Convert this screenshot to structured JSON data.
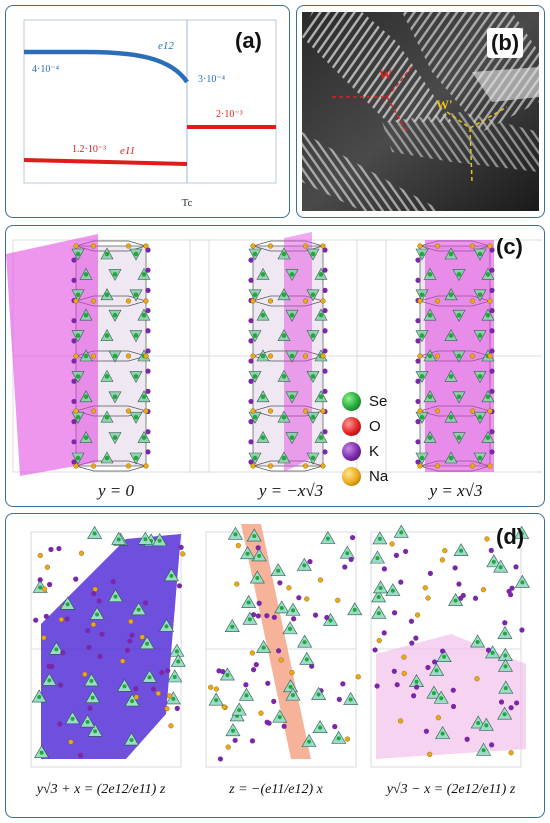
{
  "panel_a": {
    "label": "(a)",
    "curve_e12": {
      "label": "e12",
      "value_left": "4·10⁻⁴",
      "value_right": "3·10⁻⁴",
      "color": "#2a6db8"
    },
    "curve_e11": {
      "label": "e11",
      "value_left": "1.2·10⁻³",
      "value_right": "2·10⁻³",
      "color": "#e11a1a"
    },
    "x_tick": "Tc"
  },
  "panel_b": {
    "label": "(b)",
    "w_label": "W",
    "w_prime_label": "W'",
    "w_color": "#e02020",
    "w_prime_color": "#e8c020"
  },
  "panel_c": {
    "label": "(c)",
    "equations": [
      "y = 0",
      "y = −x√3",
      "y = x√3"
    ],
    "legend": [
      {
        "label": "Se",
        "color": "#22a83a"
      },
      {
        "label": "O",
        "color": "#e02020"
      },
      {
        "label": "K",
        "color": "#7a28a8"
      },
      {
        "label": "Na",
        "color": "#e8a818"
      }
    ],
    "plane_color": "#e040e0"
  },
  "panel_d": {
    "label": "(d)",
    "equations": [
      "y√3 + x = (2e12/e11) z",
      "z = −(e11/e12) x",
      "y√3 − x = (2e12/e11) z"
    ],
    "plane_colors": [
      "#5530d8",
      "#f4a080",
      "#f0b8e8"
    ]
  }
}
